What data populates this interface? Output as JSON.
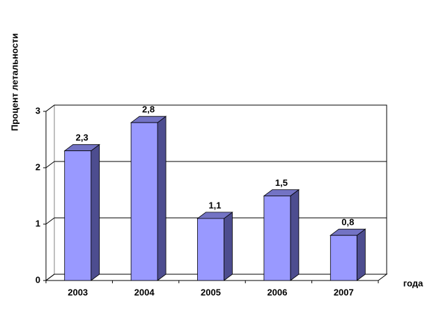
{
  "chart_data": {
    "type": "bar3d",
    "y_label": "Процент летальности",
    "x_label": "года",
    "categories": [
      "2003",
      "2004",
      "2005",
      "2006",
      "2007"
    ],
    "values": [
      2.3,
      2.8,
      1.1,
      1.5,
      0.8
    ],
    "value_labels": [
      "2,3",
      "2,8",
      "1,1",
      "1,5",
      "0,8"
    ],
    "color": "#9999ff",
    "ylim": [
      0,
      3
    ],
    "yticks": [
      0,
      1,
      2,
      3
    ],
    "grid": true
  }
}
